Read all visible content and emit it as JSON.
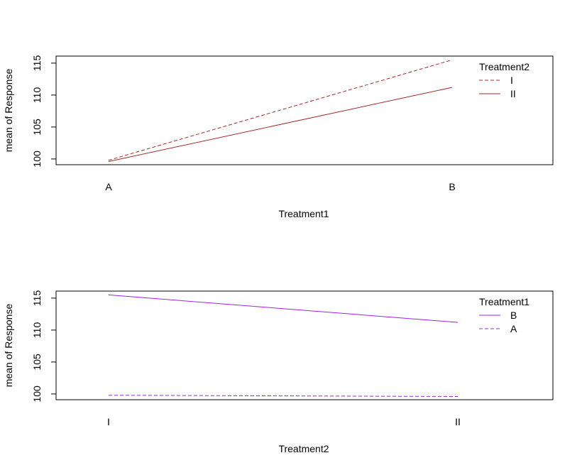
{
  "chart_data": [
    {
      "type": "line",
      "title": "",
      "xlabel": "Treatment1",
      "ylabel": "mean of  Response",
      "categories": [
        "A",
        "B"
      ],
      "yticks": [
        100,
        105,
        110,
        115
      ],
      "ylim": [
        99.1,
        116.1
      ],
      "grid": false,
      "legend": {
        "title": "Treatment2",
        "position": "top-right"
      },
      "series": [
        {
          "name": "I",
          "values": [
            99.8,
            115.5
          ],
          "linestyle": "dashed",
          "color": "#a52a2a"
        },
        {
          "name": "II",
          "values": [
            99.6,
            111.2
          ],
          "linestyle": "solid",
          "color": "#a52a2a"
        }
      ]
    },
    {
      "type": "line",
      "title": "",
      "xlabel": "Treatment2",
      "ylabel": "mean of  Response",
      "categories": [
        "I",
        "II"
      ],
      "yticks": [
        100,
        105,
        110,
        115
      ],
      "ylim": [
        99.1,
        116.1
      ],
      "grid": false,
      "legend": {
        "title": "Treatment1",
        "position": "top-right"
      },
      "series": [
        {
          "name": "B",
          "values": [
            115.5,
            111.2
          ],
          "linestyle": "solid",
          "color": "#a020f0"
        },
        {
          "name": "A",
          "values": [
            99.8,
            99.6
          ],
          "linestyle": "dashed",
          "color": "#a020f0"
        }
      ]
    }
  ]
}
